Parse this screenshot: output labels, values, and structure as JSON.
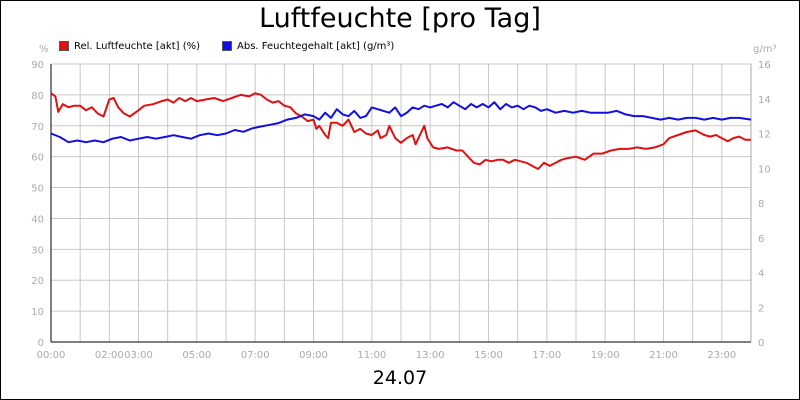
{
  "chart_data": {
    "type": "line",
    "title": "Luftfeuchte [pro Tag]",
    "xlabel": "24.07",
    "x_tick_labels": [
      "00:00",
      "02:00",
      "03:00",
      "05:00",
      "07:00",
      "09:00",
      "11:00",
      "13:00",
      "15:00",
      "17:00",
      "19:00",
      "21:00",
      "23:00"
    ],
    "x_tick_hours": [
      0,
      2,
      3,
      5,
      7,
      9,
      11,
      13,
      15,
      17,
      19,
      21,
      23
    ],
    "x_range_hours": [
      0,
      24
    ],
    "y_left": {
      "unit": "%",
      "ylim": [
        0,
        90
      ],
      "ticks": [
        0,
        10,
        20,
        30,
        40,
        50,
        60,
        70,
        80,
        90
      ]
    },
    "y_right": {
      "unit": "g/m³",
      "ylim": [
        0,
        16
      ],
      "ticks": [
        0,
        2,
        4,
        6,
        8,
        10,
        12,
        14,
        16
      ]
    },
    "grid": true,
    "legend_position": "top-left",
    "series": [
      {
        "name": "Rel. Luftfeuchte [akt] (%)",
        "axis": "left",
        "color": "#e01010",
        "points": [
          [
            0.0,
            80.5
          ],
          [
            0.15,
            79.5
          ],
          [
            0.25,
            74.5
          ],
          [
            0.4,
            77
          ],
          [
            0.6,
            76
          ],
          [
            0.8,
            76.5
          ],
          [
            1.0,
            76.5
          ],
          [
            1.2,
            75
          ],
          [
            1.4,
            76
          ],
          [
            1.6,
            74
          ],
          [
            1.8,
            73
          ],
          [
            2.0,
            78.5
          ],
          [
            2.15,
            79
          ],
          [
            2.3,
            76
          ],
          [
            2.5,
            74
          ],
          [
            2.7,
            73
          ],
          [
            3.0,
            75
          ],
          [
            3.2,
            76.5
          ],
          [
            3.5,
            77
          ],
          [
            3.8,
            78
          ],
          [
            4.0,
            78.5
          ],
          [
            4.2,
            77.5
          ],
          [
            4.4,
            79
          ],
          [
            4.6,
            78
          ],
          [
            4.8,
            79
          ],
          [
            5.0,
            78
          ],
          [
            5.3,
            78.5
          ],
          [
            5.6,
            79
          ],
          [
            5.9,
            78
          ],
          [
            6.2,
            79
          ],
          [
            6.5,
            80
          ],
          [
            6.8,
            79.5
          ],
          [
            7.0,
            80.5
          ],
          [
            7.2,
            80
          ],
          [
            7.4,
            78.5
          ],
          [
            7.6,
            77.5
          ],
          [
            7.8,
            78
          ],
          [
            8.0,
            76.5
          ],
          [
            8.2,
            76
          ],
          [
            8.4,
            74
          ],
          [
            8.6,
            73
          ],
          [
            8.8,
            71.5
          ],
          [
            9.0,
            72
          ],
          [
            9.1,
            69
          ],
          [
            9.2,
            70
          ],
          [
            9.4,
            67
          ],
          [
            9.5,
            66
          ],
          [
            9.6,
            71
          ],
          [
            9.8,
            71
          ],
          [
            10.0,
            70
          ],
          [
            10.2,
            72
          ],
          [
            10.4,
            68
          ],
          [
            10.6,
            69
          ],
          [
            10.8,
            67.5
          ],
          [
            11.0,
            67
          ],
          [
            11.2,
            68.5
          ],
          [
            11.3,
            66
          ],
          [
            11.5,
            67
          ],
          [
            11.6,
            70
          ],
          [
            11.8,
            66
          ],
          [
            12.0,
            64.5
          ],
          [
            12.2,
            66
          ],
          [
            12.4,
            67
          ],
          [
            12.5,
            64
          ],
          [
            12.6,
            66
          ],
          [
            12.8,
            70
          ],
          [
            12.9,
            66
          ],
          [
            13.1,
            63
          ],
          [
            13.3,
            62.5
          ],
          [
            13.6,
            63
          ],
          [
            13.9,
            62
          ],
          [
            14.1,
            62
          ],
          [
            14.3,
            60
          ],
          [
            14.5,
            58
          ],
          [
            14.7,
            57.5
          ],
          [
            14.9,
            59
          ],
          [
            15.1,
            58.5
          ],
          [
            15.3,
            59
          ],
          [
            15.5,
            59
          ],
          [
            15.7,
            58
          ],
          [
            15.9,
            59
          ],
          [
            16.1,
            58.5
          ],
          [
            16.3,
            58
          ],
          [
            16.5,
            57
          ],
          [
            16.7,
            56
          ],
          [
            16.9,
            58
          ],
          [
            17.1,
            57
          ],
          [
            17.3,
            58
          ],
          [
            17.5,
            59
          ],
          [
            17.7,
            59.5
          ],
          [
            18.0,
            60
          ],
          [
            18.3,
            59
          ],
          [
            18.6,
            61
          ],
          [
            18.9,
            61
          ],
          [
            19.2,
            62
          ],
          [
            19.5,
            62.5
          ],
          [
            19.8,
            62.5
          ],
          [
            20.1,
            63
          ],
          [
            20.4,
            62.5
          ],
          [
            20.7,
            63
          ],
          [
            21.0,
            64
          ],
          [
            21.2,
            66
          ],
          [
            21.5,
            67
          ],
          [
            21.8,
            68
          ],
          [
            22.1,
            68.5
          ],
          [
            22.4,
            67
          ],
          [
            22.6,
            66.5
          ],
          [
            22.8,
            67
          ],
          [
            23.0,
            66
          ],
          [
            23.2,
            65
          ],
          [
            23.4,
            66
          ],
          [
            23.6,
            66.5
          ],
          [
            23.8,
            65.5
          ],
          [
            24.0,
            65.5
          ]
        ]
      },
      {
        "name": "Abs. Feuchtegehalt [akt] (g/m³)",
        "axis": "right",
        "color": "#1010e0",
        "points": [
          [
            0.0,
            12.0
          ],
          [
            0.3,
            11.8
          ],
          [
            0.6,
            11.5
          ],
          [
            0.9,
            11.6
          ],
          [
            1.2,
            11.5
          ],
          [
            1.5,
            11.6
          ],
          [
            1.8,
            11.5
          ],
          [
            2.1,
            11.7
          ],
          [
            2.4,
            11.8
          ],
          [
            2.7,
            11.6
          ],
          [
            3.0,
            11.7
          ],
          [
            3.3,
            11.8
          ],
          [
            3.6,
            11.7
          ],
          [
            3.9,
            11.8
          ],
          [
            4.2,
            11.9
          ],
          [
            4.5,
            11.8
          ],
          [
            4.8,
            11.7
          ],
          [
            5.1,
            11.9
          ],
          [
            5.4,
            12.0
          ],
          [
            5.7,
            11.9
          ],
          [
            6.0,
            12.0
          ],
          [
            6.3,
            12.2
          ],
          [
            6.6,
            12.1
          ],
          [
            6.9,
            12.3
          ],
          [
            7.2,
            12.4
          ],
          [
            7.5,
            12.5
          ],
          [
            7.8,
            12.6
          ],
          [
            8.1,
            12.8
          ],
          [
            8.4,
            12.9
          ],
          [
            8.7,
            13.1
          ],
          [
            9.0,
            13.0
          ],
          [
            9.2,
            12.8
          ],
          [
            9.4,
            13.2
          ],
          [
            9.6,
            12.9
          ],
          [
            9.8,
            13.4
          ],
          [
            10.0,
            13.1
          ],
          [
            10.2,
            13.0
          ],
          [
            10.4,
            13.3
          ],
          [
            10.6,
            12.9
          ],
          [
            10.8,
            13.0
          ],
          [
            11.0,
            13.5
          ],
          [
            11.2,
            13.4
          ],
          [
            11.4,
            13.3
          ],
          [
            11.6,
            13.2
          ],
          [
            11.8,
            13.5
          ],
          [
            12.0,
            13.0
          ],
          [
            12.2,
            13.2
          ],
          [
            12.4,
            13.5
          ],
          [
            12.6,
            13.4
          ],
          [
            12.8,
            13.6
          ],
          [
            13.0,
            13.5
          ],
          [
            13.2,
            13.6
          ],
          [
            13.4,
            13.7
          ],
          [
            13.6,
            13.5
          ],
          [
            13.8,
            13.8
          ],
          [
            14.0,
            13.6
          ],
          [
            14.2,
            13.4
          ],
          [
            14.4,
            13.7
          ],
          [
            14.6,
            13.5
          ],
          [
            14.8,
            13.7
          ],
          [
            15.0,
            13.5
          ],
          [
            15.2,
            13.8
          ],
          [
            15.4,
            13.4
          ],
          [
            15.6,
            13.7
          ],
          [
            15.8,
            13.5
          ],
          [
            16.0,
            13.6
          ],
          [
            16.2,
            13.4
          ],
          [
            16.4,
            13.6
          ],
          [
            16.6,
            13.5
          ],
          [
            16.8,
            13.3
          ],
          [
            17.0,
            13.4
          ],
          [
            17.3,
            13.2
          ],
          [
            17.6,
            13.3
          ],
          [
            17.9,
            13.2
          ],
          [
            18.2,
            13.3
          ],
          [
            18.5,
            13.2
          ],
          [
            18.8,
            13.2
          ],
          [
            19.1,
            13.2
          ],
          [
            19.4,
            13.3
          ],
          [
            19.7,
            13.1
          ],
          [
            20.0,
            13.0
          ],
          [
            20.3,
            13.0
          ],
          [
            20.6,
            12.9
          ],
          [
            20.9,
            12.8
          ],
          [
            21.2,
            12.9
          ],
          [
            21.5,
            12.8
          ],
          [
            21.8,
            12.9
          ],
          [
            22.1,
            12.9
          ],
          [
            22.4,
            12.8
          ],
          [
            22.7,
            12.9
          ],
          [
            23.0,
            12.8
          ],
          [
            23.3,
            12.9
          ],
          [
            23.6,
            12.9
          ],
          [
            24.0,
            12.8
          ]
        ]
      }
    ]
  }
}
